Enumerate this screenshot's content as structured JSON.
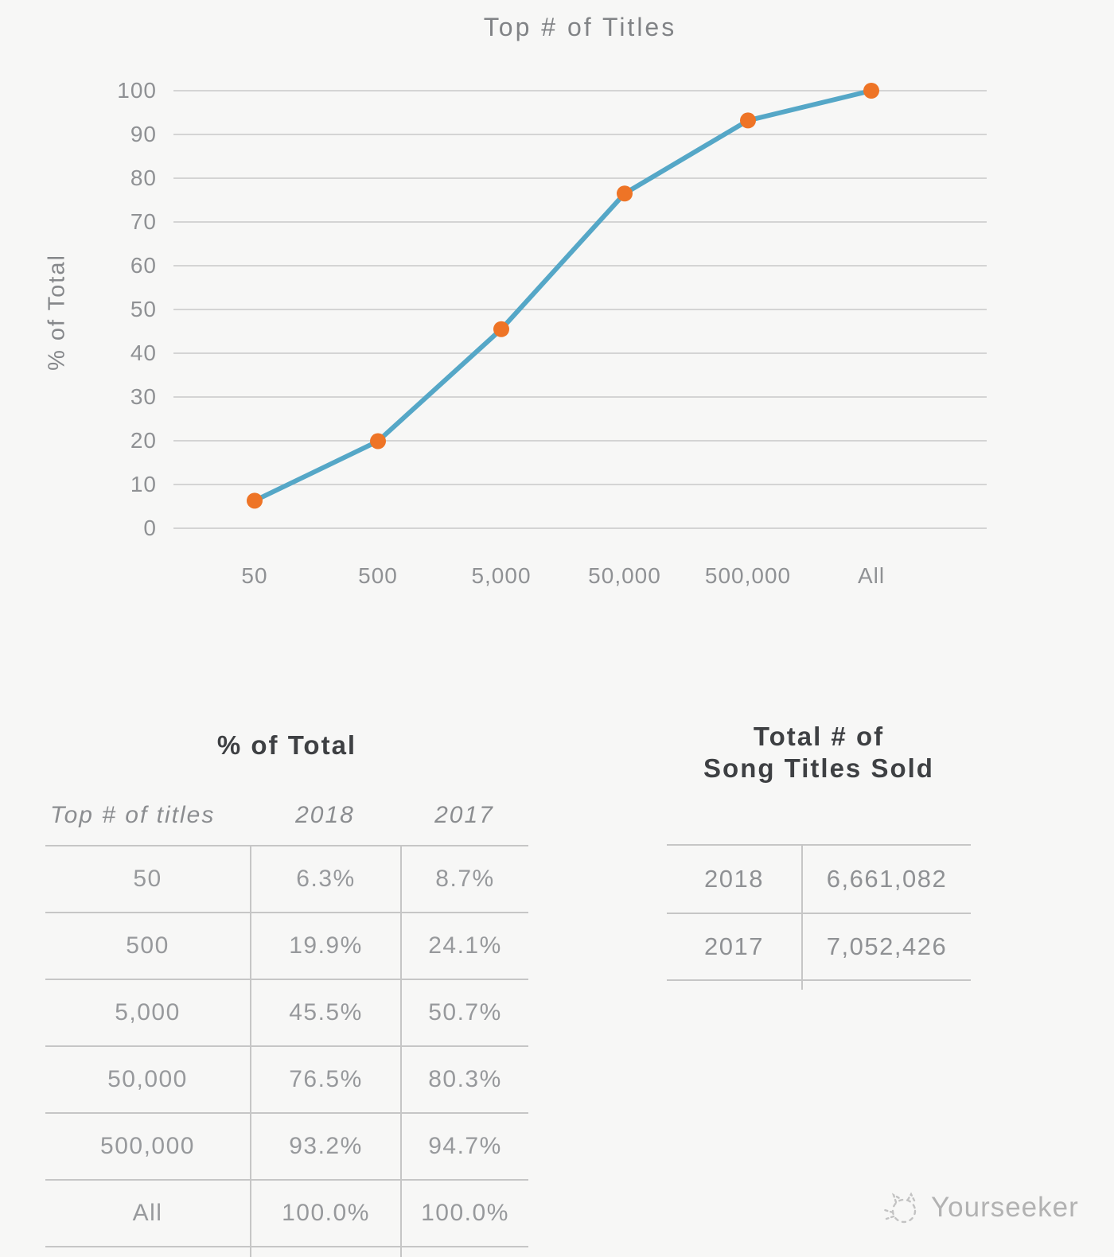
{
  "chart_data": {
    "type": "line",
    "title": "Top # of Titles",
    "xlabel": "",
    "ylabel": "% of Total",
    "categories": [
      "50",
      "500",
      "5,000",
      "50,000",
      "500,000",
      "All"
    ],
    "series": [
      {
        "name": "2018",
        "values": [
          6.3,
          19.9,
          45.5,
          76.5,
          93.2,
          100.0
        ]
      }
    ],
    "ylim": [
      0,
      100
    ],
    "yticks": [
      0,
      10,
      20,
      30,
      40,
      50,
      60,
      70,
      80,
      90,
      100
    ],
    "grid": true,
    "legend": "none",
    "line_color": "#55a7c7",
    "marker_color": "#ee7426",
    "gridline_color": "#c9c9c9"
  },
  "percent_table": {
    "title": "% of Total",
    "columns": [
      "Top # of titles",
      "2018",
      "2017"
    ],
    "rows": [
      [
        "50",
        "6.3%",
        "8.7%"
      ],
      [
        "500",
        "19.9%",
        "24.1%"
      ],
      [
        "5,000",
        "45.5%",
        "50.7%"
      ],
      [
        "50,000",
        "76.5%",
        "80.3%"
      ],
      [
        "500,000",
        "93.2%",
        "94.7%"
      ],
      [
        "All",
        "100.0%",
        "100.0%"
      ]
    ]
  },
  "totals_table": {
    "title_line1": "Total # of",
    "title_line2": "Song Titles Sold",
    "rows": [
      [
        "2018",
        "6,661,082"
      ],
      [
        "2017",
        "7,052,426"
      ]
    ]
  },
  "watermark": {
    "label": "Yourseeker"
  }
}
